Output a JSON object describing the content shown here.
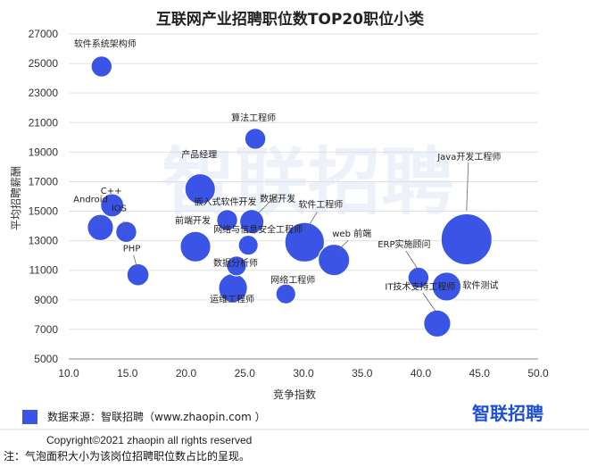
{
  "colors": {
    "bubble": "#3a55e6",
    "bubble_stroke": "#ffffff",
    "grid": "#e0e0e0",
    "axis": "#888888",
    "brand": "#1c4fd6",
    "watermark": "#dfe6f6"
  },
  "chart_data": {
    "type": "scatter",
    "title": "互联网产业招聘职位数TOP20职位小类",
    "xlabel": "竞争指数",
    "ylabel": "平均招聘薪酬",
    "xlim": [
      10.0,
      50.0
    ],
    "ylim": [
      5000,
      27000
    ],
    "xticks": [
      "10.0",
      "15.0",
      "20.0",
      "25.0",
      "30.0",
      "35.0",
      "40.0",
      "45.0",
      "50.0"
    ],
    "yticks": [
      "5000",
      "7000",
      "9000",
      "11000",
      "13000",
      "15000",
      "17000",
      "19000",
      "21000",
      "23000",
      "25000",
      "27000"
    ],
    "grid": "horizontal",
    "points": [
      {
        "label": "软件系统架构师",
        "x": 12.8,
        "y": 24800,
        "size": 1.0
      },
      {
        "label": "算法工程师",
        "x": 25.9,
        "y": 19900,
        "size": 1.0
      },
      {
        "label": "产品经理",
        "x": 21.2,
        "y": 16500,
        "size": 2.0
      },
      {
        "label": "C++",
        "x": 13.7,
        "y": 15400,
        "size": 1.2
      },
      {
        "label": "Android",
        "x": 12.7,
        "y": 13900,
        "size": 1.5
      },
      {
        "label": "IOS",
        "x": 14.9,
        "y": 13600,
        "size": 1.0
      },
      {
        "label": "嵌入式软件开发",
        "x": 23.5,
        "y": 14400,
        "size": 1.0
      },
      {
        "label": "数据开发",
        "x": 25.6,
        "y": 14300,
        "size": 1.3
      },
      {
        "label": "前端开发",
        "x": 20.8,
        "y": 12600,
        "size": 2.0
      },
      {
        "label": "网络与信息安全工程师",
        "x": 25.3,
        "y": 12700,
        "size": 0.9
      },
      {
        "label": "软件工程师",
        "x": 30.1,
        "y": 12900,
        "size": 3.2
      },
      {
        "label": "web 前端",
        "x": 32.6,
        "y": 11700,
        "size": 2.1
      },
      {
        "label": "PHP",
        "x": 15.9,
        "y": 10700,
        "size": 1.1
      },
      {
        "label": "数据分析师",
        "x": 24.3,
        "y": 11300,
        "size": 0.9
      },
      {
        "label": "运维工程师",
        "x": 24.0,
        "y": 9800,
        "size": 1.8
      },
      {
        "label": "网络工程师",
        "x": 28.5,
        "y": 9400,
        "size": 0.9
      },
      {
        "label": "ERP实施顾问",
        "x": 39.8,
        "y": 10500,
        "size": 1.0
      },
      {
        "label": "Java开发工程师",
        "x": 43.9,
        "y": 13100,
        "size": 5.0
      },
      {
        "label": "软件测试",
        "x": 42.2,
        "y": 9900,
        "size": 1.8
      },
      {
        "label": "IT技术支持工程师",
        "x": 41.4,
        "y": 7400,
        "size": 1.6
      }
    ]
  },
  "legend": {
    "text": "数据来源：智联招聘（www.zhaopin.com  ）"
  },
  "brand": {
    "text": "智联招聘"
  },
  "watermark": {
    "text": "智联招聘"
  },
  "copyright": "Copyright©2021 zhaopin all rights reserved",
  "note": "注：气泡面积大小为该岗位招聘职位数占比的呈现。"
}
